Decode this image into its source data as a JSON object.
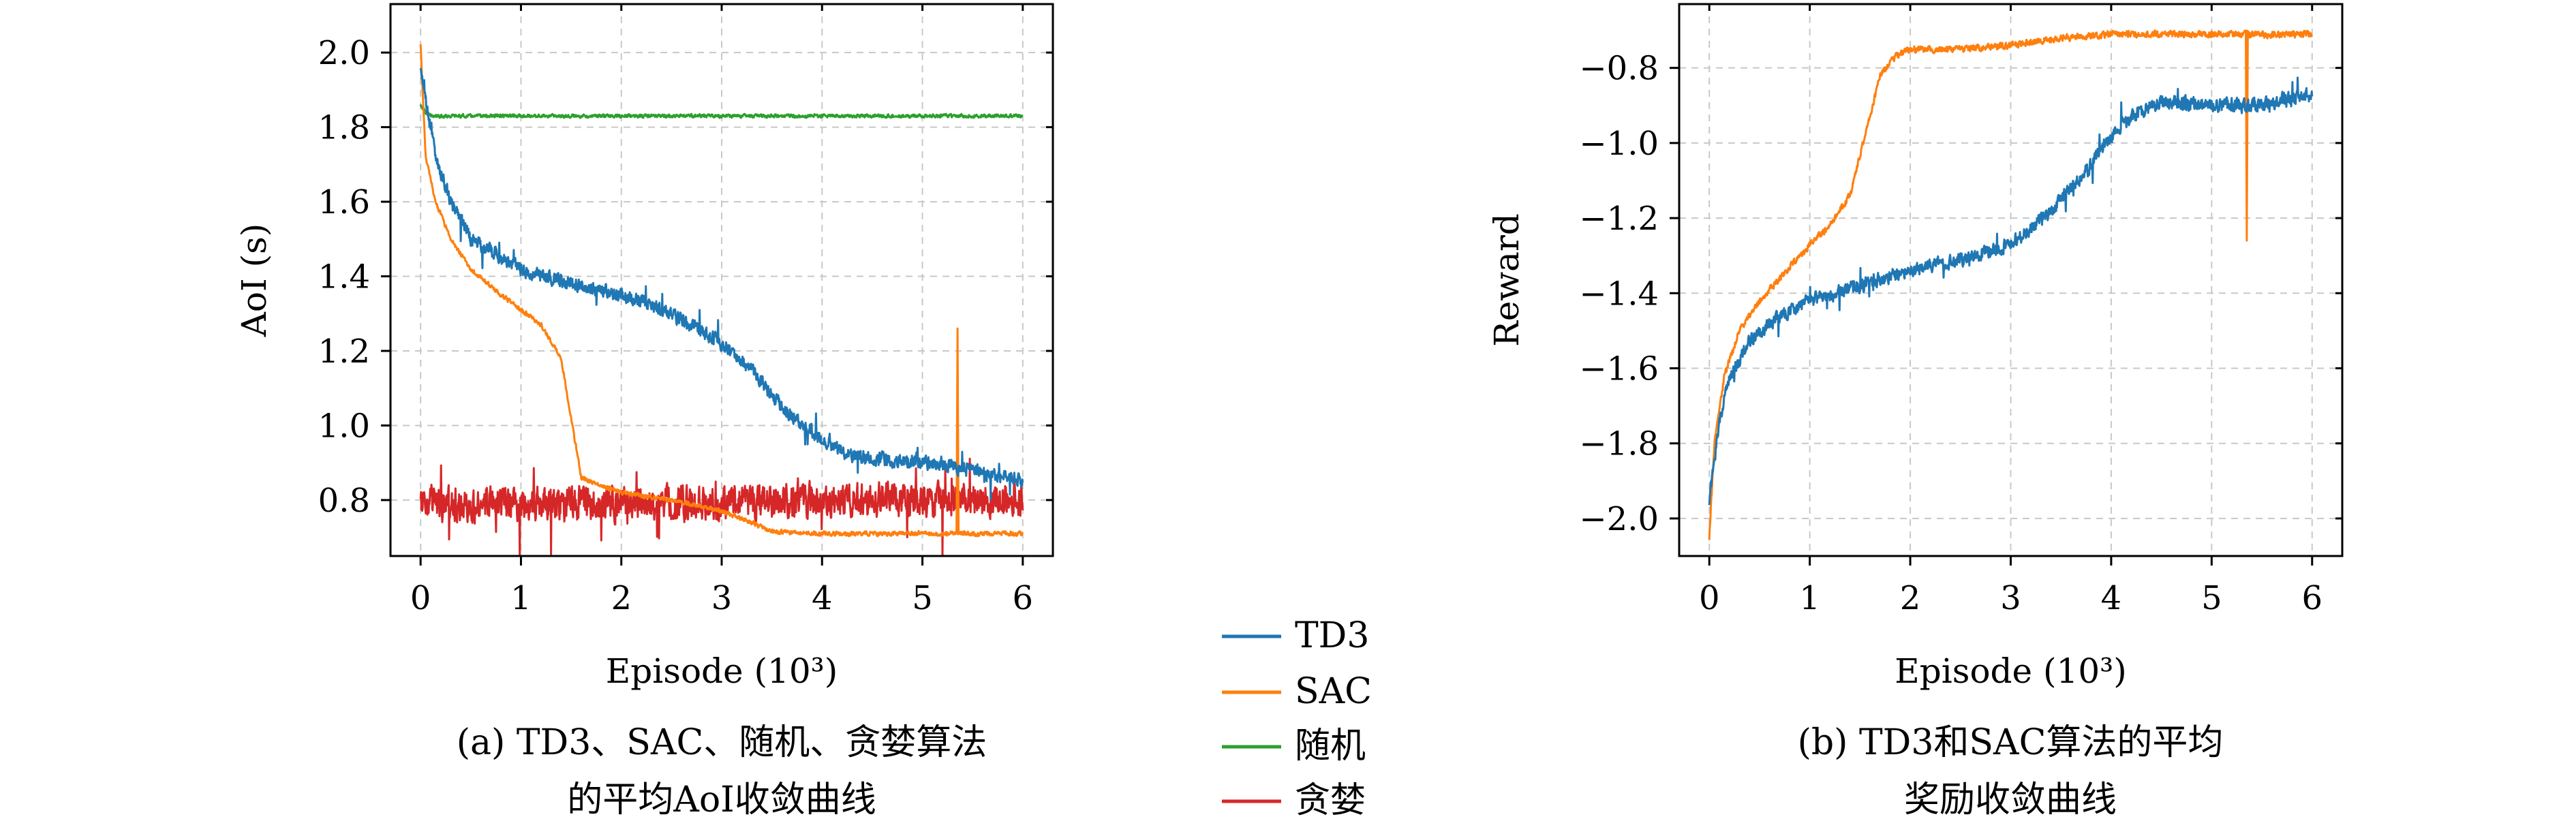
{
  "colors": {
    "TD3": "#1f77b4",
    "SAC": "#ff7f0e",
    "随机": "#2ca02c",
    "贪婪": "#d62728",
    "grid": "#c8c8c8",
    "axis": "#000000"
  },
  "legend": {
    "placement": "center, between panels",
    "entries": [
      "TD3",
      "SAC",
      "随机",
      "贪婪"
    ]
  },
  "chart_data": [
    {
      "type": "line",
      "title": "",
      "caption_lines": [
        "(a) TD3、SAC、随机、贪婪算法",
        "的平均AoI收敛曲线"
      ],
      "xlabel": "Episode (10³)",
      "ylabel": "AoI (s)",
      "xlim": [
        -0.3,
        6.3
      ],
      "ylim": [
        0.65,
        2.13
      ],
      "xticks": [
        0,
        1,
        2,
        3,
        4,
        5,
        6
      ],
      "xtick_labels": [
        "0",
        "1",
        "2",
        "3",
        "4",
        "5",
        "6"
      ],
      "yticks": [
        0.8,
        1.0,
        1.2,
        1.4,
        1.6,
        1.8,
        2.0
      ],
      "ytick_labels": [
        "0.8",
        "1.0",
        "1.2",
        "1.4",
        "1.6",
        "1.8",
        "2.0"
      ],
      "grid": true,
      "series": [
        {
          "name": "随机",
          "x": [
            0,
            0.05,
            0.1,
            0.5,
            1,
            2,
            3,
            4,
            5,
            5.5,
            6
          ],
          "y": [
            1.86,
            1.84,
            1.83,
            1.83,
            1.83,
            1.83,
            1.83,
            1.83,
            1.83,
            1.83,
            1.83
          ],
          "noise": 0.006
        },
        {
          "name": "贪婪",
          "x": [
            0,
            1,
            2,
            3,
            4,
            5,
            6
          ],
          "y": [
            0.79,
            0.79,
            0.79,
            0.79,
            0.8,
            0.8,
            0.8
          ],
          "noise": 0.06
        },
        {
          "name": "SAC",
          "x": [
            0,
            0.05,
            0.15,
            0.3,
            0.5,
            0.8,
            1.0,
            1.2,
            1.4,
            1.5,
            1.6,
            1.8,
            2.0,
            2.5,
            3.0,
            3.3,
            3.5,
            4,
            5,
            6
          ],
          "y": [
            2.02,
            1.72,
            1.6,
            1.5,
            1.42,
            1.35,
            1.31,
            1.27,
            1.18,
            1.02,
            0.86,
            0.84,
            0.82,
            0.8,
            0.77,
            0.74,
            0.715,
            0.71,
            0.71,
            0.71
          ],
          "noise": 0.008
        },
        {
          "name": "TD3",
          "x": [
            0,
            0.1,
            0.15,
            0.3,
            0.5,
            0.8,
            1,
            1.5,
            2,
            2.5,
            3,
            3.3,
            3.6,
            4.0,
            4.3,
            4.6,
            5,
            5.5,
            6
          ],
          "y": [
            1.95,
            1.8,
            1.72,
            1.6,
            1.5,
            1.45,
            1.42,
            1.38,
            1.35,
            1.3,
            1.22,
            1.15,
            1.05,
            0.96,
            0.92,
            0.91,
            0.9,
            0.88,
            0.85
          ],
          "noise": 0.025
        }
      ],
      "annotations": [
        {
          "series": "SAC",
          "x": 5.35,
          "y": 1.26,
          "note": "spike"
        }
      ]
    },
    {
      "type": "line",
      "title": "",
      "caption_lines": [
        "(b) TD3和SAC算法的平均",
        "奖励收敛曲线"
      ],
      "xlabel": "Episode (10³)",
      "ylabel": "Reward",
      "xlim": [
        -0.3,
        6.3
      ],
      "ylim": [
        -2.1,
        -0.63
      ],
      "xticks": [
        0,
        1,
        2,
        3,
        4,
        5,
        6
      ],
      "xtick_labels": [
        "0",
        "1",
        "2",
        "3",
        "4",
        "5",
        "6"
      ],
      "yticks": [
        -2.0,
        -1.8,
        -1.6,
        -1.4,
        -1.2,
        -1.0,
        -0.8
      ],
      "ytick_labels": [
        "−2.0",
        "−1.8",
        "−1.6",
        "−1.4",
        "−1.2",
        "−1.0",
        "−0.8"
      ],
      "grid": true,
      "series": [
        {
          "name": "SAC",
          "x": [
            0,
            0.05,
            0.15,
            0.3,
            0.5,
            0.8,
            1.0,
            1.2,
            1.4,
            1.55,
            1.7,
            1.85,
            2.0,
            2.5,
            3.0,
            3.5,
            4.0,
            5.0,
            6.0
          ],
          "y": [
            -2.05,
            -1.8,
            -1.62,
            -1.5,
            -1.42,
            -1.33,
            -1.27,
            -1.22,
            -1.14,
            -0.98,
            -0.82,
            -0.77,
            -0.75,
            -0.75,
            -0.74,
            -0.72,
            -0.71,
            -0.71,
            -0.71
          ],
          "noise": 0.012
        },
        {
          "name": "TD3",
          "x": [
            0,
            0.1,
            0.2,
            0.4,
            0.7,
            1.0,
            1.5,
            2.0,
            2.5,
            3.0,
            3.4,
            3.8,
            4.0,
            4.2,
            4.5,
            5.0,
            5.5,
            6.0
          ],
          "y": [
            -1.95,
            -1.75,
            -1.62,
            -1.53,
            -1.46,
            -1.42,
            -1.38,
            -1.34,
            -1.31,
            -1.27,
            -1.18,
            -1.06,
            -0.98,
            -0.93,
            -0.89,
            -0.9,
            -0.9,
            -0.87
          ],
          "noise": 0.025
        }
      ],
      "annotations": [
        {
          "series": "SAC",
          "x": 5.35,
          "y": -1.26,
          "note": "dip"
        }
      ]
    }
  ]
}
